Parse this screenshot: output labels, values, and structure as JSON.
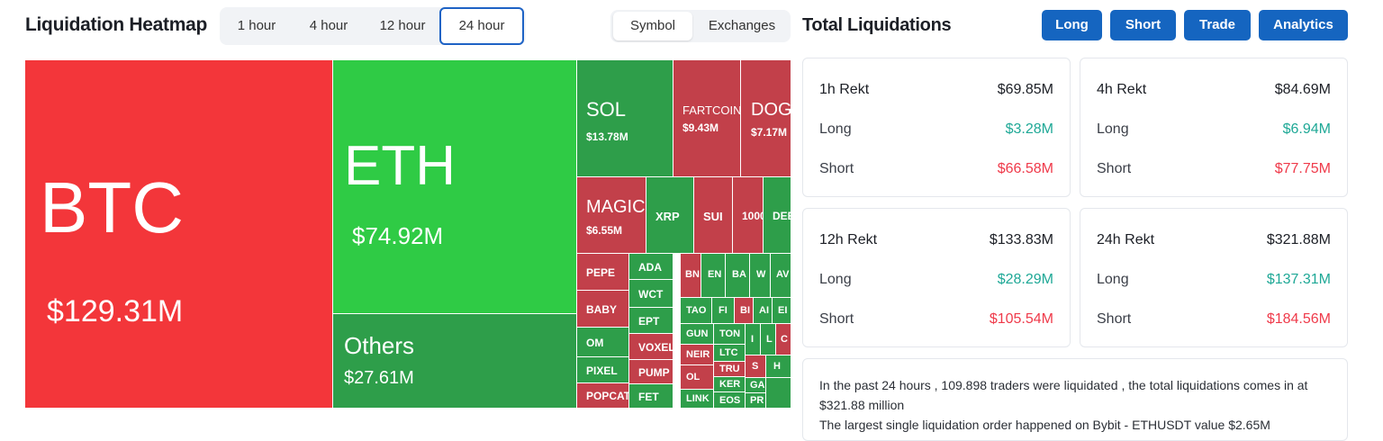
{
  "header": {
    "title": "Liquidation Heatmap",
    "time_tabs": [
      {
        "label": "1 hour",
        "active": false
      },
      {
        "label": "4 hour",
        "active": false
      },
      {
        "label": "12 hour",
        "active": false
      },
      {
        "label": "24 hour",
        "active": true
      }
    ],
    "view_tabs": [
      {
        "label": "Symbol",
        "active": true
      },
      {
        "label": "Exchanges",
        "active": false
      }
    ]
  },
  "right_header": {
    "title": "Total Liquidations",
    "buttons": [
      "Long",
      "Short",
      "Trade",
      "Analytics"
    ]
  },
  "treemap": {
    "tiles": [
      {
        "name": "BTC",
        "value": "$129.31M",
        "color": "red"
      },
      {
        "name": "ETH",
        "value": "$74.92M",
        "color": "green"
      },
      {
        "name": "Others",
        "value": "$27.61M",
        "color": "dgreen"
      },
      {
        "name": "SOL",
        "value": "$13.78M",
        "color": "dgreen"
      },
      {
        "name": "FARTCOIN",
        "value": "$9.43M",
        "color": "dred"
      },
      {
        "name": "DOGE",
        "value": "$7.17M",
        "color": "dred"
      },
      {
        "name": "MAGIC",
        "value": "$6.55M",
        "color": "dred"
      },
      {
        "name": "XRP",
        "value": "",
        "color": "dgreen"
      },
      {
        "name": "SUI",
        "value": "",
        "color": "dred"
      },
      {
        "name": "1000",
        "value": "",
        "color": "dred"
      },
      {
        "name": "DEEP",
        "value": "",
        "color": "dgreen"
      },
      {
        "name": "PEPE",
        "value": "",
        "color": "dred"
      },
      {
        "name": "ADA",
        "value": "",
        "color": "dgreen"
      },
      {
        "name": "WCT",
        "value": "",
        "color": "dgreen"
      },
      {
        "name": "BABY",
        "value": "",
        "color": "dred"
      },
      {
        "name": "EPT",
        "value": "",
        "color": "dgreen"
      },
      {
        "name": "OM",
        "value": "",
        "color": "dgreen"
      },
      {
        "name": "VOXEL",
        "value": "",
        "color": "dred"
      },
      {
        "name": "PIXEL",
        "value": "",
        "color": "dgreen"
      },
      {
        "name": "PUMP",
        "value": "",
        "color": "dred"
      },
      {
        "name": "POPCAT",
        "value": "",
        "color": "dred"
      },
      {
        "name": "FET",
        "value": "",
        "color": "dgreen"
      },
      {
        "name": "BN",
        "value": "",
        "color": "dred"
      },
      {
        "name": "EN",
        "value": "",
        "color": "dgreen"
      },
      {
        "name": "BA",
        "value": "",
        "color": "dgreen"
      },
      {
        "name": "W",
        "value": "",
        "color": "dgreen"
      },
      {
        "name": "AV",
        "value": "",
        "color": "dgreen"
      },
      {
        "name": "TAO",
        "value": "",
        "color": "dgreen"
      },
      {
        "name": "FI",
        "value": "",
        "color": "dgreen"
      },
      {
        "name": "BI",
        "value": "",
        "color": "dred"
      },
      {
        "name": "AI",
        "value": "",
        "color": "dgreen"
      },
      {
        "name": "EI",
        "value": "",
        "color": "dgreen"
      },
      {
        "name": "GUN",
        "value": "",
        "color": "dgreen"
      },
      {
        "name": "TON",
        "value": "",
        "color": "dgreen"
      },
      {
        "name": "I",
        "value": "",
        "color": "dgreen"
      },
      {
        "name": "L",
        "value": "",
        "color": "dgreen"
      },
      {
        "name": "C",
        "value": "",
        "color": "dred"
      },
      {
        "name": "NEIR",
        "value": "",
        "color": "dred"
      },
      {
        "name": "LTC",
        "value": "",
        "color": "dgreen"
      },
      {
        "name": "TRU",
        "value": "",
        "color": "dred"
      },
      {
        "name": "S",
        "value": "",
        "color": "dred"
      },
      {
        "name": "H",
        "value": "",
        "color": "dgreen"
      },
      {
        "name": "OL",
        "value": "",
        "color": "dred"
      },
      {
        "name": "KER",
        "value": "",
        "color": "dgreen"
      },
      {
        "name": "GA",
        "value": "",
        "color": "dgreen"
      },
      {
        "name": "LINK",
        "value": "",
        "color": "dgreen"
      },
      {
        "name": "EOS",
        "value": "",
        "color": "dgreen"
      },
      {
        "name": "PR",
        "value": "",
        "color": "dgreen"
      }
    ]
  },
  "stats": [
    {
      "period": "1h Rekt",
      "total": "$69.85M",
      "long_label": "Long",
      "long": "$3.28M",
      "short_label": "Short",
      "short": "$66.58M"
    },
    {
      "period": "4h Rekt",
      "total": "$84.69M",
      "long_label": "Long",
      "long": "$6.94M",
      "short_label": "Short",
      "short": "$77.75M"
    },
    {
      "period": "12h Rekt",
      "total": "$133.83M",
      "long_label": "Long",
      "long": "$28.29M",
      "short_label": "Short",
      "short": "$105.54M"
    },
    {
      "period": "24h Rekt",
      "total": "$321.88M",
      "long_label": "Long",
      "long": "$137.31M",
      "short_label": "Short",
      "short": "$184.56M"
    }
  ],
  "summary": {
    "line1": "In the past 24 hours , 109.898 traders were liquidated , the total liquidations comes in at $321.88 million",
    "line2": "The largest single liquidation order happened on Bybit - ETHUSDT value $2.65M"
  },
  "colors": {
    "red": "#f3363a",
    "green": "#2fcb45",
    "dred": "#c2404a",
    "dgreen": "#2e9e4a",
    "accent": "#1565c0",
    "long": "#1ea896",
    "short": "#ef3a4a"
  }
}
